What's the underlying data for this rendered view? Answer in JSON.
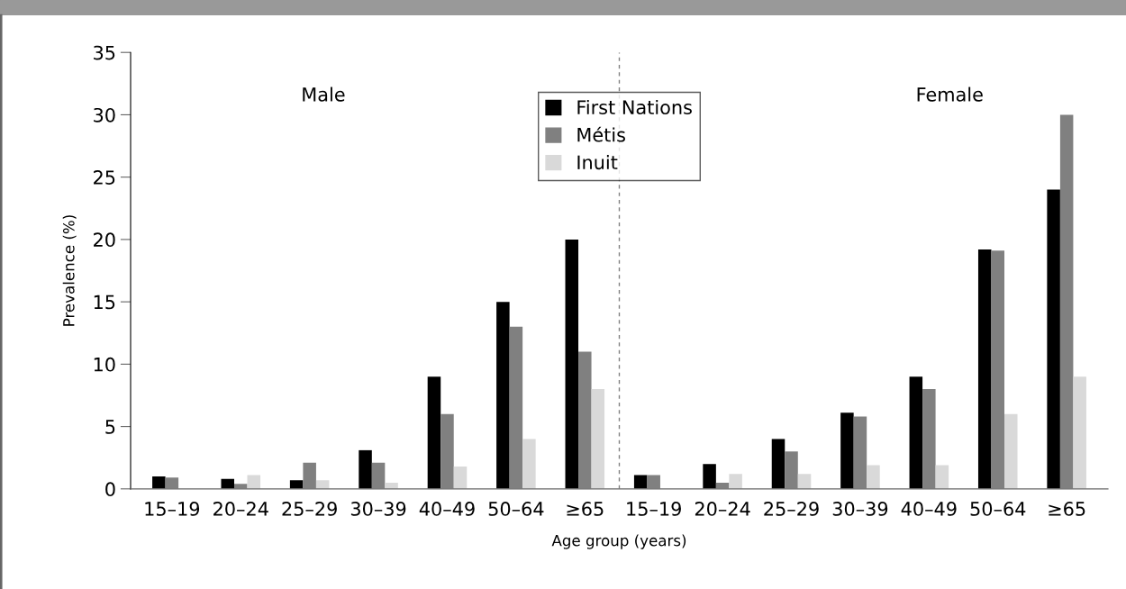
{
  "chart_data": {
    "type": "bar",
    "xlabel": "Age group (years)",
    "ylabel": "Prevalence (%)",
    "categories": [
      "15–19",
      "20–24",
      "25–29",
      "30–39",
      "40–49",
      "50–64",
      "≥65",
      "15–19",
      "20–24",
      "25–29",
      "30–39",
      "40–49",
      "50–64",
      "≥65"
    ],
    "series": [
      {
        "name": "First Nations",
        "color": "#000000",
        "values": [
          1.0,
          0.8,
          0.7,
          3.1,
          9.0,
          15,
          20,
          1.1,
          2.0,
          4.0,
          6.1,
          9.0,
          19.2,
          24
        ]
      },
      {
        "name": "Métis",
        "color": "#808080",
        "values": [
          0.9,
          0.4,
          2.1,
          2.1,
          6.0,
          13,
          11,
          1.1,
          0.5,
          3.0,
          5.8,
          8.0,
          19.1,
          30
        ]
      },
      {
        "name": "Inuit",
        "color": "#d9d9d9",
        "values": [
          0,
          1.1,
          0.7,
          0.5,
          1.8,
          4,
          8,
          0,
          1.2,
          1.2,
          1.9,
          1.9,
          6.0,
          9
        ]
      }
    ],
    "annotations": [
      "Male",
      "Female"
    ],
    "ylim": [
      0,
      35
    ],
    "yticks": [
      0,
      5,
      10,
      15,
      20,
      25,
      30,
      35
    ],
    "grid": false,
    "legend": "top"
  }
}
